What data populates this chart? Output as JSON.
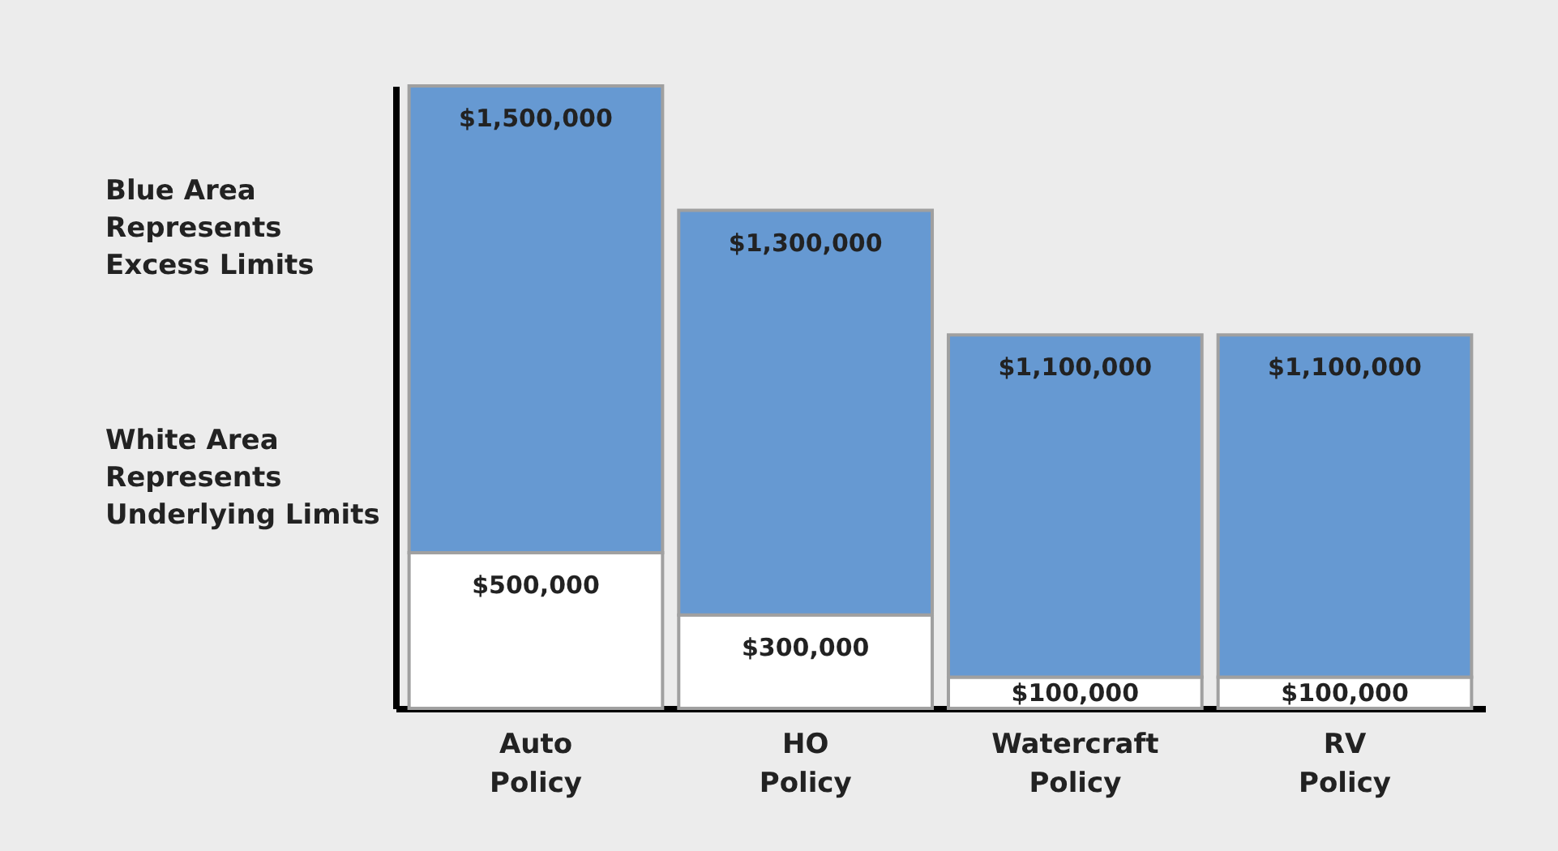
{
  "chart_data": {
    "type": "bar",
    "stacked": true,
    "categories": [
      "Auto Policy",
      "HO Policy",
      "Watercraft Policy",
      "RV Policy"
    ],
    "series": [
      {
        "color": "#ffffff",
        "values": [
          500000,
          300000,
          100000,
          100000
        ],
        "value_labels": [
          "$500,000",
          "$300,000",
          "$100,000",
          "$100,000"
        ]
      },
      {
        "color": "#6699d2",
        "values": [
          1500000,
          1300000,
          1100000,
          1100000
        ],
        "value_labels": [
          "$1,500,000",
          "$1,300,000",
          "$1,100,000",
          "$1,100,000"
        ]
      }
    ],
    "annotations": [
      "Blue Area Represents Excess Limits",
      "White Area Represents Underlying Limits"
    ]
  }
}
